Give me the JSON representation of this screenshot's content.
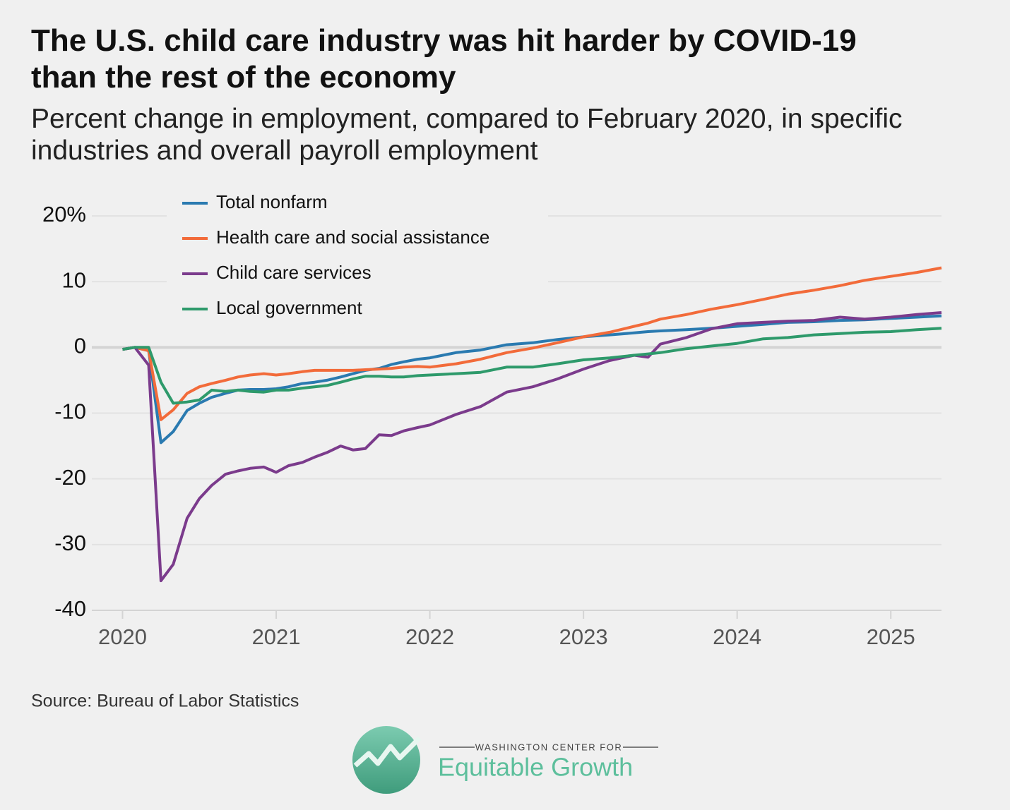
{
  "chart_data": {
    "type": "line",
    "title": "The U.S. child care industry was hit harder by COVID-19 than the rest of the economy",
    "subtitle": "Percent change in employment, compared to February 2020, in specific industries and overall payroll employment",
    "source": "Source: Bureau of Labor Statistics",
    "x": [
      2020.0,
      2020.08,
      2020.17,
      2020.25,
      2020.33,
      2020.42,
      2020.5,
      2020.58,
      2020.67,
      2020.75,
      2020.83,
      2020.92,
      2021.0,
      2021.08,
      2021.17,
      2021.25,
      2021.33,
      2021.42,
      2021.5,
      2021.58,
      2021.67,
      2021.75,
      2021.83,
      2021.92,
      2022.0,
      2022.17,
      2022.33,
      2022.5,
      2022.67,
      2022.83,
      2023.0,
      2023.17,
      2023.33,
      2023.42,
      2023.5,
      2023.67,
      2023.83,
      2024.0,
      2024.17,
      2024.33,
      2024.5,
      2024.67,
      2024.83,
      2025.0,
      2025.17,
      2025.33
    ],
    "series": [
      {
        "name": "Total nonfarm",
        "color": "#2a7ab0",
        "values": [
          -0.3,
          0,
          -0.5,
          -14.5,
          -12.8,
          -9.6,
          -8.5,
          -7.6,
          -7,
          -6.5,
          -6.4,
          -6.4,
          -6.3,
          -6,
          -5.5,
          -5.3,
          -5,
          -4.5,
          -4,
          -3.5,
          -3.2,
          -2.6,
          -2.2,
          -1.8,
          -1.6,
          -0.8,
          -0.4,
          0.4,
          0.7,
          1.2,
          1.6,
          1.9,
          2.2,
          2.4,
          2.5,
          2.7,
          2.9,
          3.2,
          3.5,
          3.8,
          3.9,
          4.1,
          4.2,
          4.4,
          4.6,
          4.8
        ]
      },
      {
        "name": "Health care and social assistance",
        "color": "#f26b3a",
        "values": [
          -0.3,
          0,
          -0.5,
          -11,
          -9.5,
          -7,
          -6,
          -5.5,
          -5,
          -4.5,
          -4.2,
          -4,
          -4.2,
          -4,
          -3.7,
          -3.5,
          -3.5,
          -3.5,
          -3.5,
          -3.4,
          -3.3,
          -3.2,
          -3,
          -2.9,
          -3,
          -2.5,
          -1.8,
          -0.8,
          -0.1,
          0.7,
          1.6,
          2.3,
          3.2,
          3.7,
          4.3,
          5,
          5.8,
          6.5,
          7.3,
          8.1,
          8.7,
          9.4,
          10.2,
          10.8,
          11.4,
          12.1
        ]
      },
      {
        "name": "Child care services",
        "color": "#7b3b8c",
        "values": [
          -0.3,
          0,
          -2.7,
          -35.5,
          -33,
          -26,
          -23,
          -21,
          -19.3,
          -18.8,
          -18.4,
          -18.2,
          -19,
          -18,
          -17.5,
          -16.7,
          -16,
          -15,
          -15.6,
          -15.4,
          -13.3,
          -13.4,
          -12.7,
          -12.2,
          -11.8,
          -10.2,
          -9,
          -6.8,
          -6,
          -4.8,
          -3.3,
          -2,
          -1.2,
          -1.5,
          0.5,
          1.5,
          2.8,
          3.6,
          3.8,
          4,
          4.1,
          4.6,
          4.3,
          4.6,
          5,
          5.3
        ]
      },
      {
        "name": "Local government",
        "color": "#2e9a6b",
        "values": [
          -0.3,
          0,
          0,
          -5.3,
          -8.5,
          -8.3,
          -8,
          -6.5,
          -6.7,
          -6.5,
          -6.7,
          -6.8,
          -6.5,
          -6.5,
          -6.2,
          -6,
          -5.8,
          -5.3,
          -4.8,
          -4.4,
          -4.4,
          -4.5,
          -4.5,
          -4.3,
          -4.2,
          -4,
          -3.8,
          -3,
          -3,
          -2.5,
          -1.9,
          -1.6,
          -1.2,
          -1,
          -0.8,
          -0.2,
          0.2,
          0.6,
          1.3,
          1.5,
          1.9,
          2.1,
          2.3,
          2.4,
          2.7,
          2.9
        ]
      }
    ],
    "xlim": [
      2019.8,
      2025.33
    ],
    "xticks": [
      2020,
      2021,
      2022,
      2023,
      2024,
      2025
    ],
    "ylim": [
      -40,
      20
    ],
    "yticks": [
      -40,
      -30,
      -20,
      -10,
      0,
      10,
      {
        "value": 20,
        "label": "20%"
      }
    ],
    "grid": true,
    "legend": "top-left"
  },
  "branding": {
    "kicker": "WASHINGTON CENTER FOR",
    "name": "Equitable Growth"
  }
}
